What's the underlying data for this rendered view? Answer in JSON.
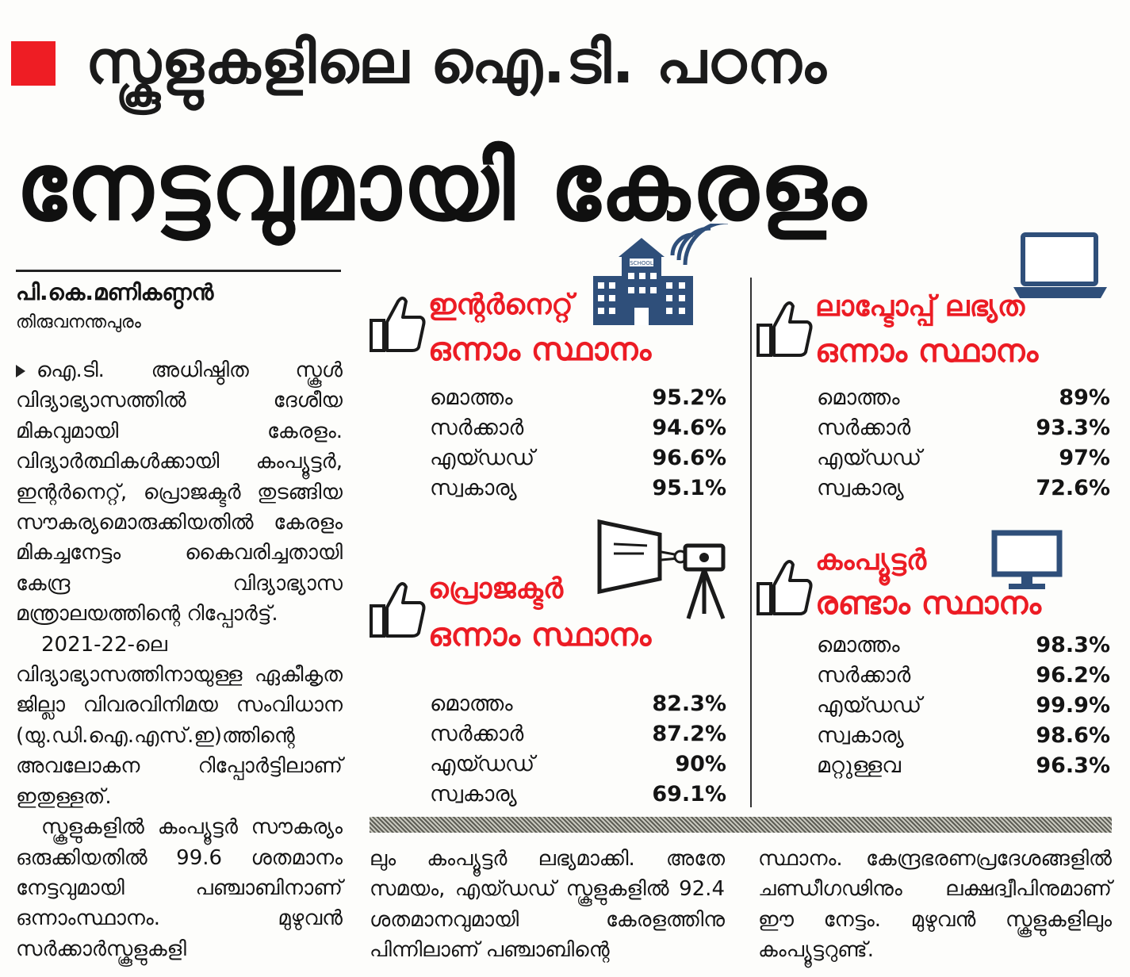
{
  "kicker": "സ്കൂളുകളിലെ ഐ.ടി. പഠനം",
  "headline": "നേട്ടവുമായി കേരളം",
  "byline": {
    "author": "പി.കെ.മണികണ്ഠൻ",
    "place": "തിരുവനന്തപുരം"
  },
  "left_column": [
    "ഐ.ടി. അധിഷ്ഠിത സ്കൂൾ വിദ്യാഭ്യാസത്തിൽ ദേശീയ മികവുമായി കേരളം. വിദ്യാർത്ഥികൾക്കായി കംപ്യൂട്ടർ, ഇന്റർനെറ്റ്, പ്രൊജക്ടർ തുടങ്ങിയ സൗകര്യമൊരുക്കിയതിൽ കേരളം മികച്ചനേട്ടം കൈവരിച്ചതായി കേന്ദ്ര വിദ്യാഭ്യാസ മന്ത്രാലയത്തിന്റെ റിപ്പോർട്ട്.",
    "2021-22-ലെ വിദ്യാഭ്യാസത്തിനായുള്ള ഏകീകൃത ജില്ലാ വിവരവിനിമയ സംവിധാന (യു.ഡി.ഐ.എസ്.ഇ)ത്തിന്റെ അവലോകന റിപ്പോർട്ടിലാണ് ഇതുള്ളത്.",
    "സ്കൂളുകളിൽ കംപ്യൂട്ടർ സൗകര്യം ഒരുക്കിയതിൽ 99.6 ശതമാനം നേട്ടവുമായി പഞ്ചാബിനാണ് ഒന്നാംസ്ഥാനം. മുഴുവൻ സർക്കാർസ്കൂളുകളി"
  ],
  "panels": {
    "internet": {
      "title": "ഇന്റർനെറ്റ്",
      "rank": "ഒന്നാം സ്ഥാനം",
      "school_sign": "SCHOOL",
      "rows": [
        {
          "label": "മൊത്തം",
          "value": "95.2%"
        },
        {
          "label": "സർക്കാർ",
          "value": "94.6%"
        },
        {
          "label": "എയ്ഡഡ്",
          "value": "96.6%"
        },
        {
          "label": "സ്വകാര്യ",
          "value": "95.1%"
        }
      ]
    },
    "laptop": {
      "title": "ലാപ്ടോപ്പ് ലഭ്യത",
      "rank": "ഒന്നാം സ്ഥാനം",
      "rows": [
        {
          "label": "മൊത്തം",
          "value": "89%"
        },
        {
          "label": "സർക്കാർ",
          "value": "93.3%"
        },
        {
          "label": "എയ്ഡഡ്",
          "value": "97%"
        },
        {
          "label": "സ്വകാര്യ",
          "value": "72.6%"
        }
      ]
    },
    "projector": {
      "title": "പ്രൊജക്ടർ",
      "rank": "ഒന്നാം സ്ഥാനം",
      "rows": [
        {
          "label": "മൊത്തം",
          "value": "82.3%"
        },
        {
          "label": "സർക്കാർ",
          "value": "87.2%"
        },
        {
          "label": "എയ്ഡഡ്",
          "value": "90%"
        },
        {
          "label": "സ്വകാര്യ",
          "value": "69.1%"
        }
      ]
    },
    "computer": {
      "title": "കംപ്യൂട്ടർ",
      "rank": "രണ്ടാം സ്ഥാനം",
      "rows": [
        {
          "label": "മൊത്തം",
          "value": "98.3%"
        },
        {
          "label": "സർക്കാർ",
          "value": "96.2%"
        },
        {
          "label": "എയ്ഡഡ്",
          "value": "99.9%"
        },
        {
          "label": "സ്വകാര്യ",
          "value": "98.6%"
        },
        {
          "label": "മറ്റുള്ളവ",
          "value": "96.3%"
        }
      ]
    }
  },
  "bottom_columns": {
    "middle": "ലും കംപ്യൂട്ടർ ലഭ്യമാക്കി. അതേ സമയം, എയ്ഡഡ് സ്കൂളുകളിൽ 92.4 ശതമാനവുമായി കേരളത്തിനു പിന്നിലാണ് പഞ്ചാബിന്റെ",
    "right": "സ്ഥാനം. കേന്ദ്രഭരണപ്രദേശങ്ങളിൽ ചണ്ഡീഗഢിനും ലക്ഷദ്വീപിനുമാണ് ഈ നേട്ടം. മുഴുവൻ സ്കൂളുകളിലും കംപ്യൂട്ടറുണ്ട്."
  },
  "colors": {
    "accent_red": "#ec1c24",
    "text": "#141414",
    "icon_blue": "#2f4f7a"
  }
}
